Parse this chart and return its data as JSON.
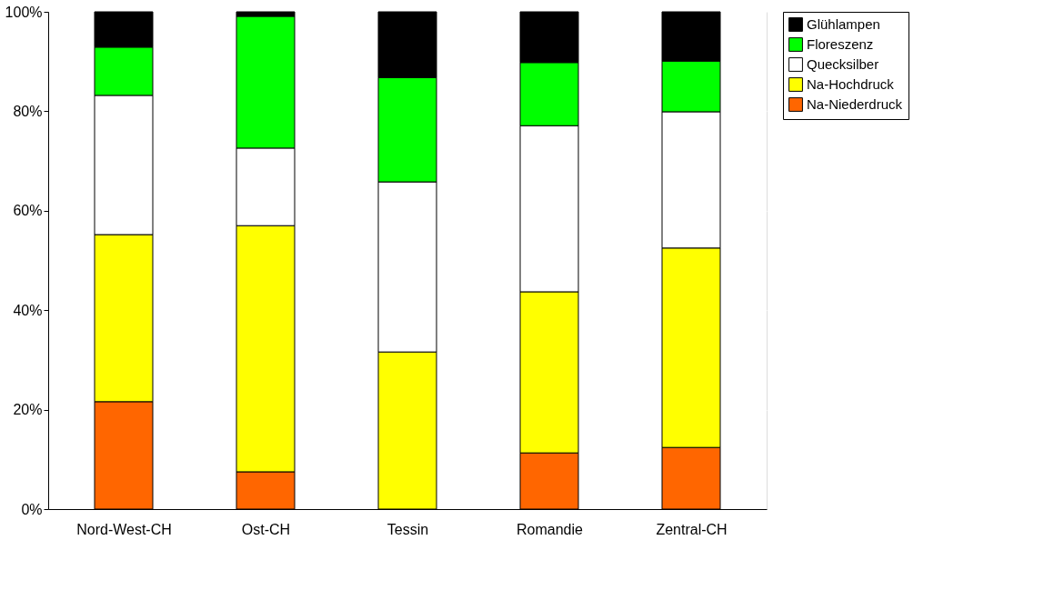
{
  "chart_data": {
    "type": "bar",
    "stacked": true,
    "categories": [
      "Nord-West-CH",
      "Ost-CH",
      "Tessin",
      "Romandie",
      "Zentral-CH"
    ],
    "series": [
      {
        "name": "Na-Niederdruck",
        "color": "#ff6600",
        "values": [
          21.6,
          7.5,
          0,
          11.3,
          12.4
        ]
      },
      {
        "name": "Na-Hochdruck",
        "color": "#ffff00",
        "values": [
          33.6,
          49.5,
          31.6,
          32.4,
          40.1
        ]
      },
      {
        "name": "Quecksilber",
        "color": "#ffffff",
        "values": [
          28.0,
          15.6,
          34.2,
          33.4,
          27.4
        ]
      },
      {
        "name": "Floreszenz",
        "color": "#00ff00",
        "values": [
          9.7,
          26.5,
          21.0,
          12.7,
          10.2
        ]
      },
      {
        "name": "Glühlampen",
        "color": "#000000",
        "values": [
          7.1,
          0.9,
          13.2,
          10.2,
          9.9
        ]
      }
    ],
    "ylim": [
      0,
      100
    ],
    "yticks": [
      {
        "value": 0,
        "label": "0%"
      },
      {
        "value": 20,
        "label": "20%"
      },
      {
        "value": 40,
        "label": "40%"
      },
      {
        "value": 60,
        "label": "60%"
      },
      {
        "value": 80,
        "label": "80%"
      },
      {
        "value": 100,
        "label": "100%"
      }
    ],
    "grid": "y",
    "legend": "right"
  }
}
